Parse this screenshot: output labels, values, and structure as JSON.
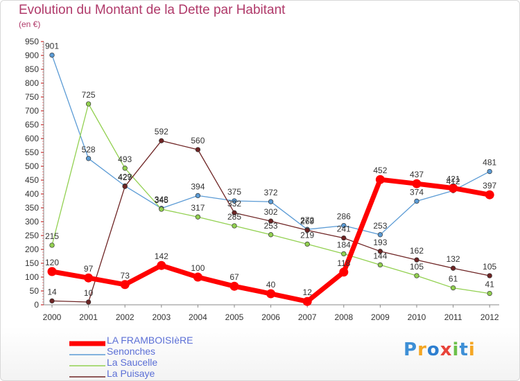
{
  "chart_data": {
    "type": "line",
    "title": "Evolution du Montant de la Dette par Habitant",
    "unit_label": "(en €)",
    "x": [
      "2000",
      "2001",
      "2002",
      "2003",
      "2004",
      "2005",
      "2006",
      "2007",
      "2008",
      "2009",
      "2010",
      "2011",
      "2012"
    ],
    "ylim": [
      0,
      950
    ],
    "yticks": [
      0,
      50,
      100,
      150,
      200,
      250,
      300,
      350,
      400,
      450,
      500,
      550,
      600,
      650,
      700,
      750,
      800,
      850,
      900,
      950
    ],
    "grid": false,
    "legend_position": "bottom-left",
    "series": [
      {
        "name": "LA FRAMBOISIèRE",
        "color": "#ff0000",
        "values": [
          120,
          97,
          73,
          142,
          100,
          67,
          40,
          12,
          118,
          452,
          437,
          421,
          397
        ]
      },
      {
        "name": "Senonches",
        "color": "#5b9bd5",
        "values": [
          901,
          528,
          429,
          348,
          394,
          375,
          372,
          272,
          286,
          253,
          374,
          412,
          481
        ]
      },
      {
        "name": "La Saucelle",
        "color": "#92d050",
        "values": [
          215,
          725,
          493,
          345,
          317,
          285,
          253,
          219,
          184,
          144,
          105,
          61,
          41
        ]
      },
      {
        "name": "La Puisaye",
        "color": "#6e2424",
        "values": [
          14,
          10,
          427,
          592,
          560,
          332,
          302,
          269,
          241,
          193,
          162,
          132,
          105
        ]
      }
    ],
    "data_labels": [
      [
        "120",
        "97",
        "73",
        "142",
        "100",
        "67",
        "40",
        "12",
        "118",
        "452",
        "437",
        "421",
        "397"
      ],
      [
        "901",
        "528",
        "429",
        "348",
        "394",
        "375",
        "372",
        "272",
        "286",
        "253",
        "374",
        "412",
        "481"
      ],
      [
        "215",
        "725",
        "493",
        "345",
        "317",
        "285",
        "253",
        "219",
        "184",
        "144",
        "105",
        "61",
        "41"
      ],
      [
        "14",
        "10",
        "427",
        "592",
        "560",
        "332",
        "302",
        "269",
        "241",
        "193",
        "162",
        "132",
        "105"
      ]
    ]
  },
  "logo": {
    "text": "Proxiti",
    "letters": [
      "P",
      "r",
      "o",
      "x",
      "i",
      "t",
      "i"
    ],
    "colors": [
      "#3d8fd6",
      "#f5a623",
      "#2e7fd0",
      "#e8433a",
      "#6cc04a",
      "#3d8fd6",
      "#f5a623"
    ]
  }
}
